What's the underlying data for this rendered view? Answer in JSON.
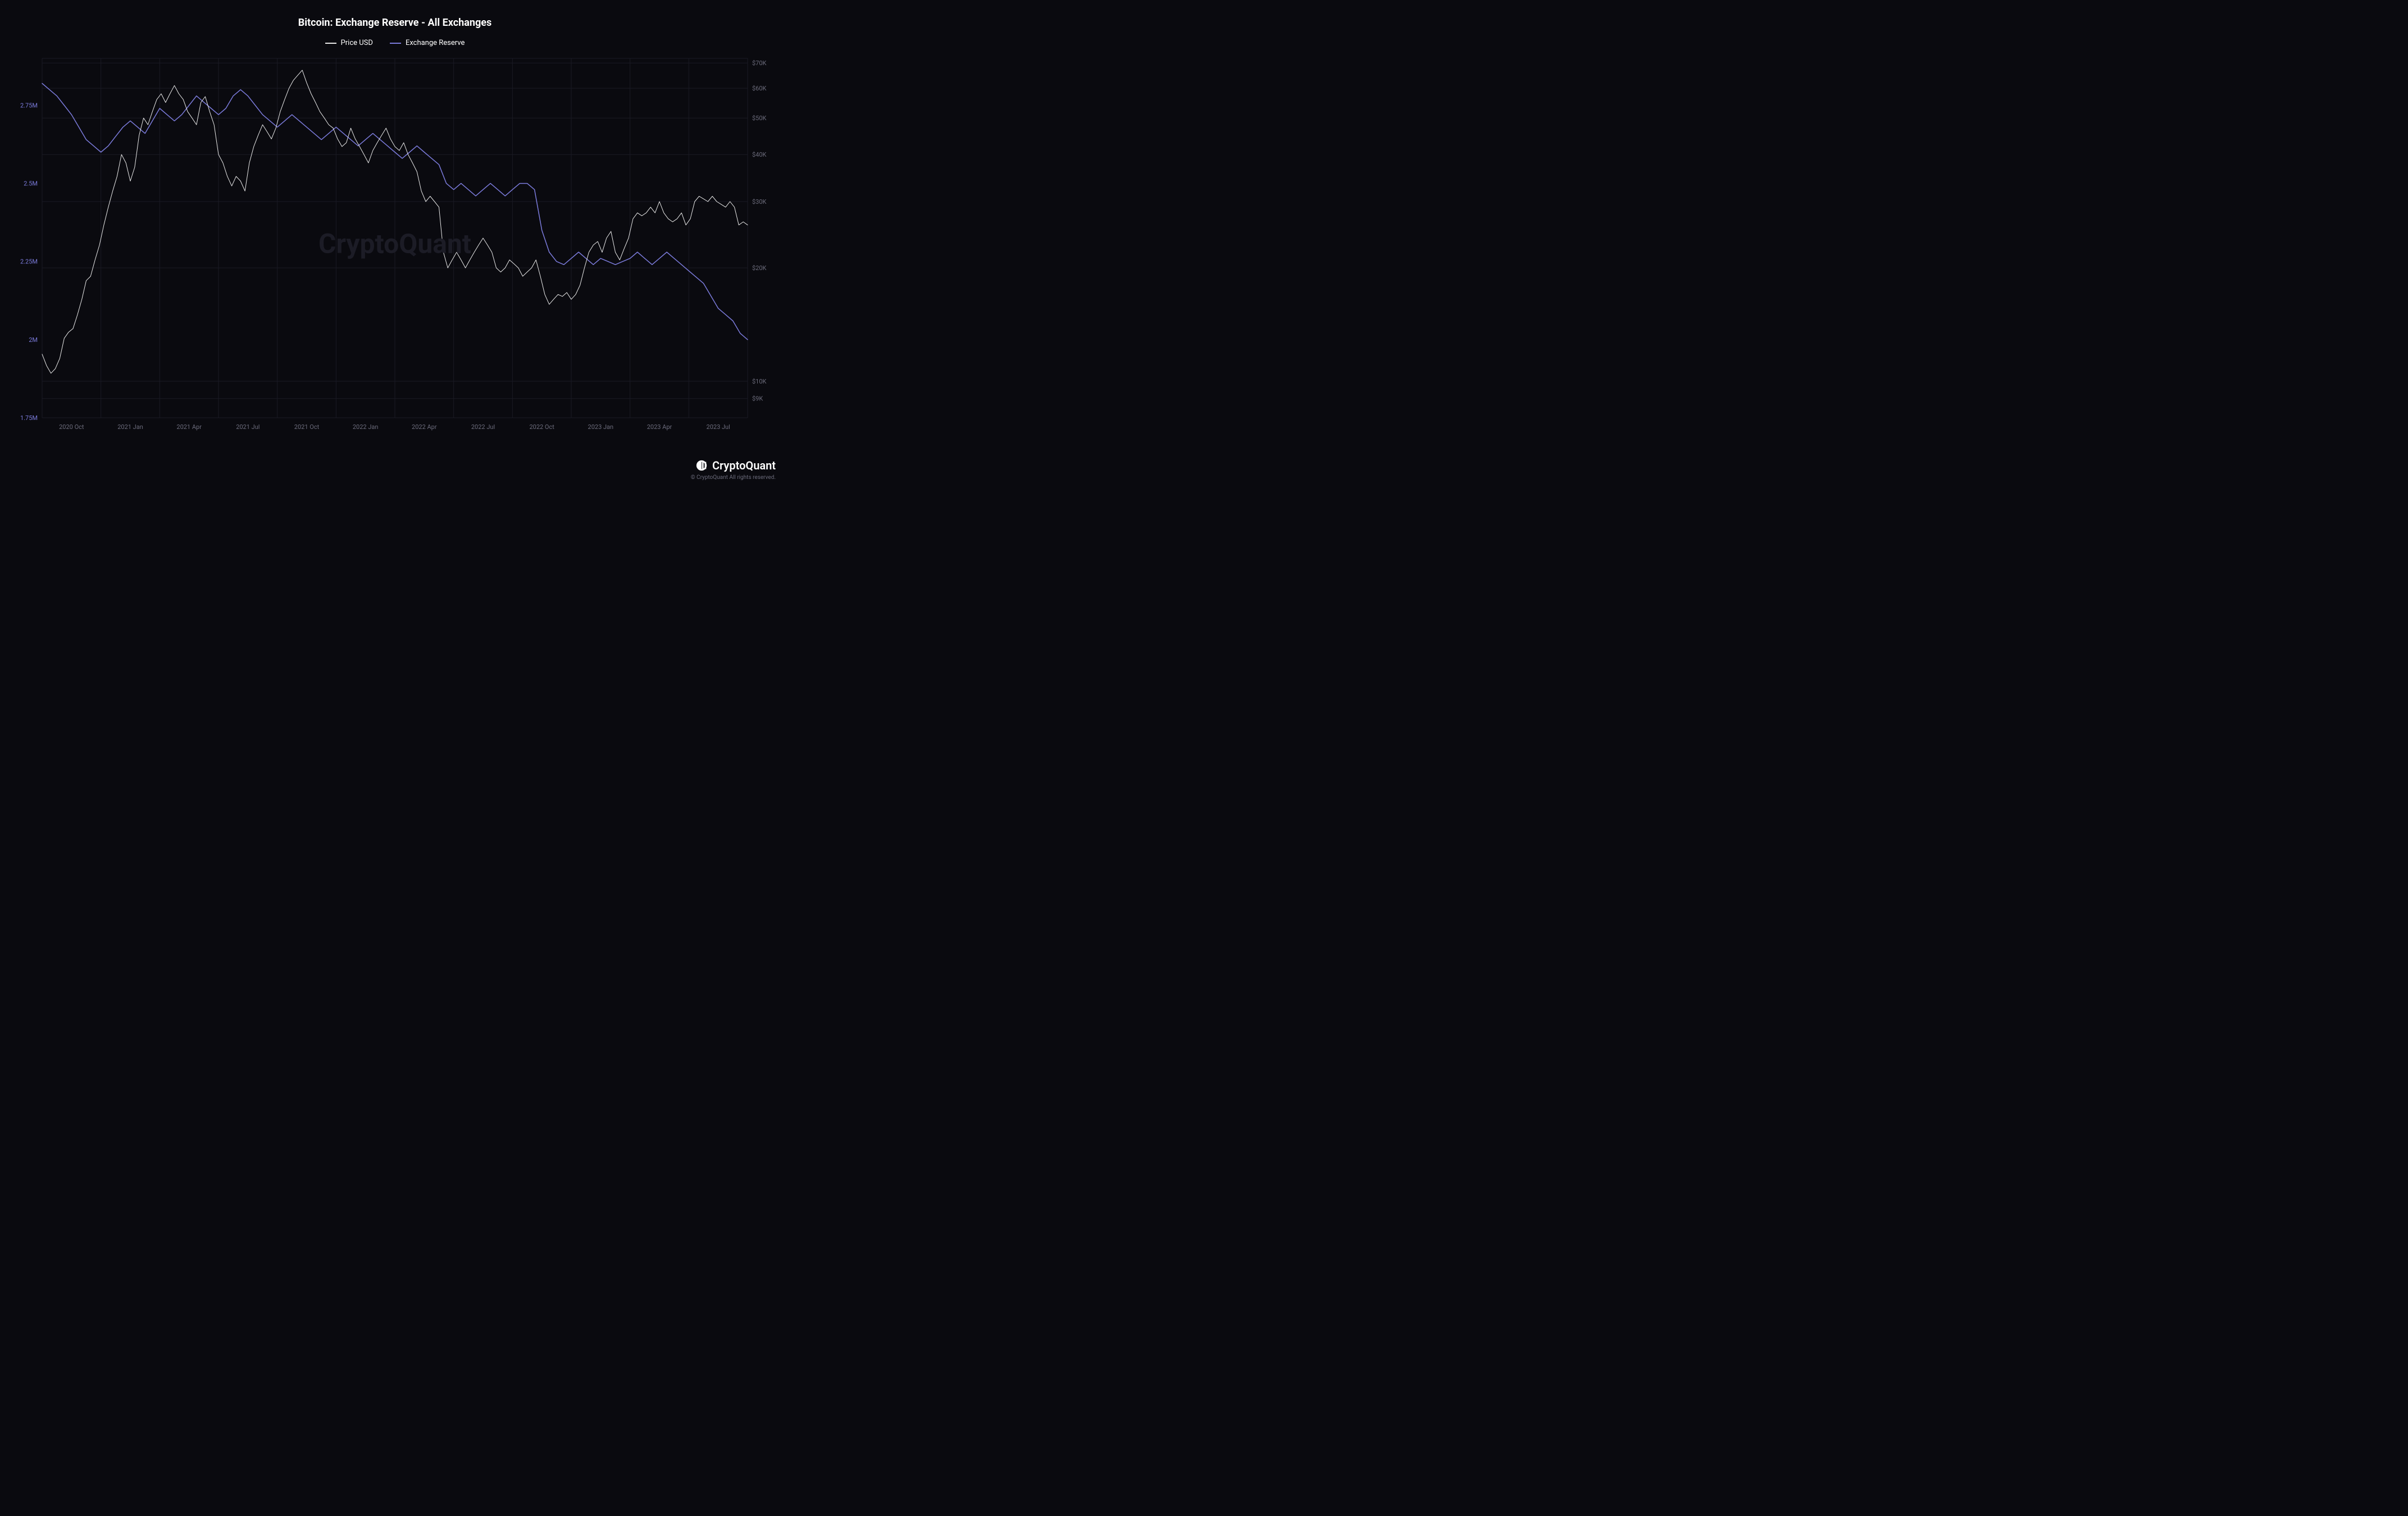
{
  "chart": {
    "type": "line",
    "title": "Bitcoin: Exchange Reserve - All Exchanges",
    "background_color": "#0a0a0f",
    "grid_color": "#1a1a24",
    "watermark_text": "CryptoQuant",
    "watermark_color": "#1c1c26",
    "title_fontsize": 18,
    "legend": [
      {
        "label": "Price USD",
        "color": "#e8e8e8"
      },
      {
        "label": "Exchange Reserve",
        "color": "#7b7bdb"
      }
    ],
    "x_axis": {
      "labels": [
        "2020 Oct",
        "2021 Jan",
        "2021 Apr",
        "2021 Jul",
        "2021 Oct",
        "2022 Jan",
        "2022 Apr",
        "2022 Jul",
        "2022 Oct",
        "2023 Jan",
        "2023 Apr",
        "2023 Jul"
      ],
      "label_color": "#6b6b7b",
      "label_fontsize": 11
    },
    "y_left": {
      "ticks": [
        1.75,
        2.0,
        2.25,
        2.5,
        2.75
      ],
      "tick_labels": [
        "1.75M",
        "2M",
        "2.25M",
        "2.5M",
        "2.75M"
      ],
      "min": 1.75,
      "max": 2.9,
      "label_color": "#7b7bdb",
      "label_fontsize": 11
    },
    "y_right": {
      "ticks": [
        9000,
        10000,
        20000,
        30000,
        40000,
        50000,
        60000,
        70000
      ],
      "tick_labels": [
        "$9K",
        "$10K",
        "$20K",
        "$30K",
        "$40K",
        "$50K",
        "$60K",
        "$70K"
      ],
      "min": 8000,
      "max": 72000,
      "scale": "log",
      "label_color": "#6b6b7b",
      "label_fontsize": 11
    },
    "series": {
      "price": {
        "color": "#e8e8e8",
        "line_width": 1,
        "data": [
          [
            0,
            11800
          ],
          [
            0.3,
            11000
          ],
          [
            0.6,
            10500
          ],
          [
            0.9,
            10800
          ],
          [
            1.2,
            11500
          ],
          [
            1.5,
            13000
          ],
          [
            1.8,
            13500
          ],
          [
            2.1,
            13800
          ],
          [
            2.4,
            15000
          ],
          [
            2.7,
            16500
          ],
          [
            3,
            18500
          ],
          [
            3.3,
            19000
          ],
          [
            3.6,
            21000
          ],
          [
            3.9,
            23000
          ],
          [
            4.2,
            26000
          ],
          [
            4.5,
            29000
          ],
          [
            4.8,
            32000
          ],
          [
            5.1,
            35000
          ],
          [
            5.4,
            40000
          ],
          [
            5.7,
            38000
          ],
          [
            6,
            34000
          ],
          [
            6.3,
            37000
          ],
          [
            6.6,
            45000
          ],
          [
            6.9,
            50000
          ],
          [
            7.2,
            48000
          ],
          [
            7.5,
            52000
          ],
          [
            7.8,
            56000
          ],
          [
            8.1,
            58000
          ],
          [
            8.4,
            55000
          ],
          [
            8.7,
            58000
          ],
          [
            9,
            61000
          ],
          [
            9.3,
            58000
          ],
          [
            9.6,
            56000
          ],
          [
            9.9,
            52000
          ],
          [
            10.2,
            50000
          ],
          [
            10.5,
            48000
          ],
          [
            10.8,
            55000
          ],
          [
            11.1,
            57000
          ],
          [
            11.4,
            52000
          ],
          [
            11.7,
            48000
          ],
          [
            12,
            40000
          ],
          [
            12.3,
            38000
          ],
          [
            12.6,
            35000
          ],
          [
            12.9,
            33000
          ],
          [
            13.2,
            35000
          ],
          [
            13.5,
            34000
          ],
          [
            13.8,
            32000
          ],
          [
            14.1,
            38000
          ],
          [
            14.4,
            42000
          ],
          [
            14.7,
            45000
          ],
          [
            15,
            48000
          ],
          [
            15.3,
            46000
          ],
          [
            15.6,
            44000
          ],
          [
            15.9,
            47000
          ],
          [
            16.2,
            52000
          ],
          [
            16.5,
            56000
          ],
          [
            16.8,
            60000
          ],
          [
            17.1,
            63000
          ],
          [
            17.4,
            65000
          ],
          [
            17.7,
            67000
          ],
          [
            18,
            62000
          ],
          [
            18.3,
            58000
          ],
          [
            18.6,
            55000
          ],
          [
            18.9,
            52000
          ],
          [
            19.2,
            50000
          ],
          [
            19.5,
            48000
          ],
          [
            19.8,
            47000
          ],
          [
            20.1,
            44000
          ],
          [
            20.4,
            42000
          ],
          [
            20.7,
            43000
          ],
          [
            21,
            47000
          ],
          [
            21.3,
            44000
          ],
          [
            21.6,
            42000
          ],
          [
            21.9,
            40000
          ],
          [
            22.2,
            38000
          ],
          [
            22.5,
            41000
          ],
          [
            22.8,
            43000
          ],
          [
            23.1,
            45000
          ],
          [
            23.4,
            47000
          ],
          [
            23.7,
            44000
          ],
          [
            24,
            42000
          ],
          [
            24.3,
            41000
          ],
          [
            24.6,
            43000
          ],
          [
            24.9,
            40000
          ],
          [
            25.2,
            38000
          ],
          [
            25.5,
            36000
          ],
          [
            25.8,
            32000
          ],
          [
            26.1,
            30000
          ],
          [
            26.4,
            31000
          ],
          [
            26.7,
            30000
          ],
          [
            27,
            29000
          ],
          [
            27.3,
            22000
          ],
          [
            27.6,
            20000
          ],
          [
            27.9,
            21000
          ],
          [
            28.2,
            22000
          ],
          [
            28.5,
            21000
          ],
          [
            28.8,
            20000
          ],
          [
            29.1,
            21000
          ],
          [
            29.4,
            22000
          ],
          [
            29.7,
            23000
          ],
          [
            30,
            24000
          ],
          [
            30.3,
            23000
          ],
          [
            30.6,
            22000
          ],
          [
            30.9,
            20000
          ],
          [
            31.2,
            19500
          ],
          [
            31.5,
            20000
          ],
          [
            31.8,
            21000
          ],
          [
            32.1,
            20500
          ],
          [
            32.4,
            20000
          ],
          [
            32.7,
            19000
          ],
          [
            33,
            19500
          ],
          [
            33.3,
            20000
          ],
          [
            33.6,
            21000
          ],
          [
            33.9,
            19000
          ],
          [
            34.2,
            17000
          ],
          [
            34.5,
            16000
          ],
          [
            34.8,
            16500
          ],
          [
            35.1,
            17000
          ],
          [
            35.4,
            16800
          ],
          [
            35.7,
            17200
          ],
          [
            36,
            16500
          ],
          [
            36.3,
            17000
          ],
          [
            36.6,
            18000
          ],
          [
            36.9,
            20000
          ],
          [
            37.2,
            22000
          ],
          [
            37.5,
            23000
          ],
          [
            37.8,
            23500
          ],
          [
            38.1,
            22000
          ],
          [
            38.4,
            24000
          ],
          [
            38.7,
            25000
          ],
          [
            39,
            22000
          ],
          [
            39.3,
            21000
          ],
          [
            39.6,
            22500
          ],
          [
            39.9,
            24000
          ],
          [
            40.2,
            27000
          ],
          [
            40.5,
            28000
          ],
          [
            40.8,
            27500
          ],
          [
            41.1,
            28000
          ],
          [
            41.4,
            29000
          ],
          [
            41.7,
            28000
          ],
          [
            42,
            30000
          ],
          [
            42.3,
            28000
          ],
          [
            42.6,
            27000
          ],
          [
            42.9,
            26500
          ],
          [
            43.2,
            27000
          ],
          [
            43.5,
            28000
          ],
          [
            43.8,
            26000
          ],
          [
            44.1,
            27000
          ],
          [
            44.4,
            30000
          ],
          [
            44.7,
            31000
          ],
          [
            45,
            30500
          ],
          [
            45.3,
            30000
          ],
          [
            45.6,
            31000
          ],
          [
            45.9,
            30000
          ],
          [
            46.2,
            29500
          ],
          [
            46.5,
            29000
          ],
          [
            46.8,
            30000
          ],
          [
            47.1,
            29000
          ],
          [
            47.4,
            26000
          ],
          [
            47.7,
            26500
          ],
          [
            48,
            26000
          ]
        ]
      },
      "reserve": {
        "color": "#7b7bdb",
        "line_width": 1.5,
        "data": [
          [
            0,
            2.82
          ],
          [
            0.5,
            2.8
          ],
          [
            1,
            2.78
          ],
          [
            1.5,
            2.75
          ],
          [
            2,
            2.72
          ],
          [
            2.5,
            2.68
          ],
          [
            3,
            2.64
          ],
          [
            3.5,
            2.62
          ],
          [
            4,
            2.6
          ],
          [
            4.5,
            2.62
          ],
          [
            5,
            2.65
          ],
          [
            5.5,
            2.68
          ],
          [
            6,
            2.7
          ],
          [
            6.5,
            2.68
          ],
          [
            7,
            2.66
          ],
          [
            7.5,
            2.7
          ],
          [
            8,
            2.74
          ],
          [
            8.5,
            2.72
          ],
          [
            9,
            2.7
          ],
          [
            9.5,
            2.72
          ],
          [
            10,
            2.75
          ],
          [
            10.5,
            2.78
          ],
          [
            11,
            2.76
          ],
          [
            11.5,
            2.74
          ],
          [
            12,
            2.72
          ],
          [
            12.5,
            2.74
          ],
          [
            13,
            2.78
          ],
          [
            13.5,
            2.8
          ],
          [
            14,
            2.78
          ],
          [
            14.5,
            2.75
          ],
          [
            15,
            2.72
          ],
          [
            15.5,
            2.7
          ],
          [
            16,
            2.68
          ],
          [
            16.5,
            2.7
          ],
          [
            17,
            2.72
          ],
          [
            17.5,
            2.7
          ],
          [
            18,
            2.68
          ],
          [
            18.5,
            2.66
          ],
          [
            19,
            2.64
          ],
          [
            19.5,
            2.66
          ],
          [
            20,
            2.68
          ],
          [
            20.5,
            2.66
          ],
          [
            21,
            2.64
          ],
          [
            21.5,
            2.62
          ],
          [
            22,
            2.64
          ],
          [
            22.5,
            2.66
          ],
          [
            23,
            2.64
          ],
          [
            23.5,
            2.62
          ],
          [
            24,
            2.6
          ],
          [
            24.5,
            2.58
          ],
          [
            25,
            2.6
          ],
          [
            25.5,
            2.62
          ],
          [
            26,
            2.6
          ],
          [
            26.5,
            2.58
          ],
          [
            27,
            2.56
          ],
          [
            27.5,
            2.5
          ],
          [
            28,
            2.48
          ],
          [
            28.5,
            2.5
          ],
          [
            29,
            2.48
          ],
          [
            29.5,
            2.46
          ],
          [
            30,
            2.48
          ],
          [
            30.5,
            2.5
          ],
          [
            31,
            2.48
          ],
          [
            31.5,
            2.46
          ],
          [
            32,
            2.48
          ],
          [
            32.5,
            2.5
          ],
          [
            33,
            2.5
          ],
          [
            33.5,
            2.48
          ],
          [
            34,
            2.35
          ],
          [
            34.5,
            2.28
          ],
          [
            35,
            2.25
          ],
          [
            35.5,
            2.24
          ],
          [
            36,
            2.26
          ],
          [
            36.5,
            2.28
          ],
          [
            37,
            2.26
          ],
          [
            37.5,
            2.24
          ],
          [
            38,
            2.26
          ],
          [
            38.5,
            2.25
          ],
          [
            39,
            2.24
          ],
          [
            39.5,
            2.25
          ],
          [
            40,
            2.26
          ],
          [
            40.5,
            2.28
          ],
          [
            41,
            2.26
          ],
          [
            41.5,
            2.24
          ],
          [
            42,
            2.26
          ],
          [
            42.5,
            2.28
          ],
          [
            43,
            2.26
          ],
          [
            43.5,
            2.24
          ],
          [
            44,
            2.22
          ],
          [
            44.5,
            2.2
          ],
          [
            45,
            2.18
          ],
          [
            45.5,
            2.14
          ],
          [
            46,
            2.1
          ],
          [
            46.5,
            2.08
          ],
          [
            47,
            2.06
          ],
          [
            47.5,
            2.02
          ],
          [
            48,
            2.0
          ]
        ]
      }
    }
  },
  "brand": {
    "name": "CryptoQuant",
    "copyright": "© CryptoQuant All rights reserved.",
    "logo_color": "#ffffff"
  }
}
